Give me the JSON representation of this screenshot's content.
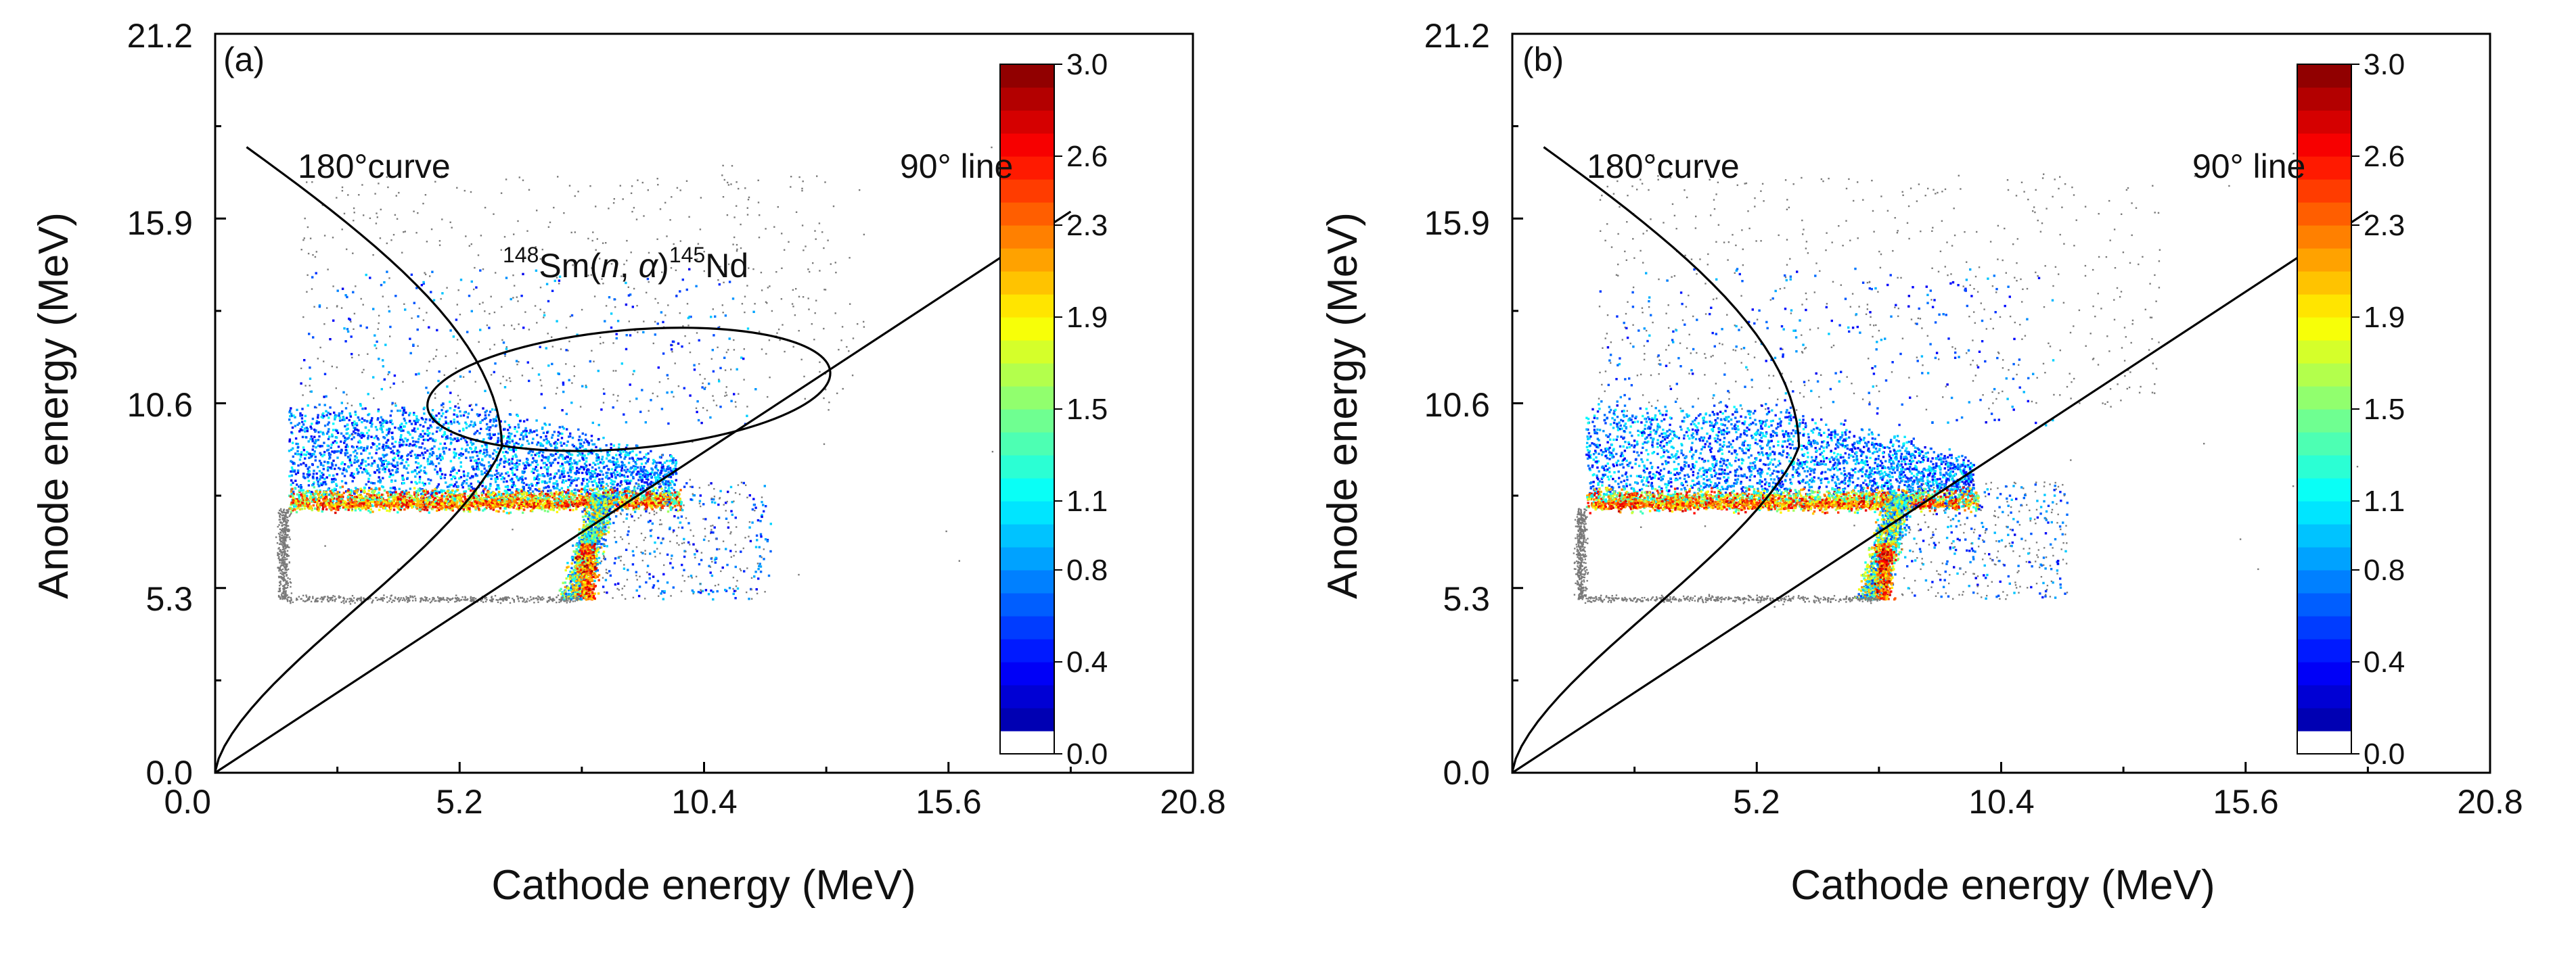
{
  "chart_data": [
    {
      "type": "scatter",
      "panel_label": "(a)",
      "xlabel": "Cathode energy (MeV)",
      "ylabel": "Anode energy (MeV)",
      "xlim": [
        0.0,
        20.8
      ],
      "ylim": [
        0.0,
        21.2
      ],
      "xticks": [
        "5.2",
        "10.4",
        "15.6",
        "20.8"
      ],
      "yticks": [
        "0.0",
        "5.3",
        "10.6",
        "15.9",
        "21.2"
      ],
      "annotations": {
        "curve_180": "180°curve",
        "line_90": "90° line",
        "reaction": {
          "sup1": "148",
          "p1": "Sm(",
          "n": "n",
          "p2": ", ",
          "alpha": "α",
          "p3": ")",
          "sup2": "145",
          "p4": "Nd"
        }
      },
      "colorbar": {
        "min": 0.0,
        "max": 3.0,
        "ticks": [
          "0.0",
          "0.4",
          "0.8",
          "1.1",
          "1.5",
          "1.9",
          "2.3",
          "2.6",
          "3.0"
        ]
      },
      "reaction_ellipse": {
        "center": [
          8.8,
          11.0
        ],
        "half_widths": [
          4.3,
          1.7
        ]
      },
      "regions": [
        {
          "name": "dense band",
          "x_range": [
            1.5,
            10.0
          ],
          "y_range": [
            7.6,
            8.3
          ]
        },
        {
          "name": "low-energy cluster",
          "x_range": [
            1.5,
            10.0
          ],
          "y_range": [
            5.0,
            10.5
          ]
        },
        {
          "name": "vertical ridge",
          "x_range": [
            7.5,
            8.7
          ],
          "y_range": [
            5.0,
            8.2
          ]
        },
        {
          "name": "sparse high-energy",
          "x_range": [
            1.8,
            14.0
          ],
          "y_range": [
            10.5,
            17.5
          ]
        }
      ]
    },
    {
      "type": "scatter",
      "panel_label": "(b)",
      "xlabel": "Cathode energy (MeV)",
      "ylabel": "Anode energy (MeV)",
      "xlim": [
        0.0,
        20.8
      ],
      "ylim": [
        0.0,
        21.2
      ],
      "xticks": [
        "5.2",
        "10.4",
        "15.6",
        "20.8"
      ],
      "yticks": [
        "0.0",
        "5.3",
        "10.6",
        "15.9",
        "21.2"
      ],
      "annotations": {
        "curve_180": "180°curve",
        "line_90": "90° line"
      },
      "colorbar": {
        "min": 0.0,
        "max": 3.0,
        "ticks": [
          "0.0",
          "0.4",
          "0.8",
          "1.1",
          "1.5",
          "1.9",
          "2.3",
          "2.6",
          "3.0"
        ]
      },
      "regions": [
        {
          "name": "dense band",
          "x_range": [
            1.5,
            10.0
          ],
          "y_range": [
            7.6,
            8.3
          ]
        },
        {
          "name": "low-energy cluster",
          "x_range": [
            1.5,
            10.0
          ],
          "y_range": [
            5.0,
            10.5
          ]
        },
        {
          "name": "vertical ridge",
          "x_range": [
            7.5,
            8.7
          ],
          "y_range": [
            5.0,
            8.2
          ]
        },
        {
          "name": "sparse high-energy",
          "x_range": [
            1.8,
            14.0
          ],
          "y_range": [
            10.5,
            17.5
          ]
        }
      ]
    }
  ]
}
